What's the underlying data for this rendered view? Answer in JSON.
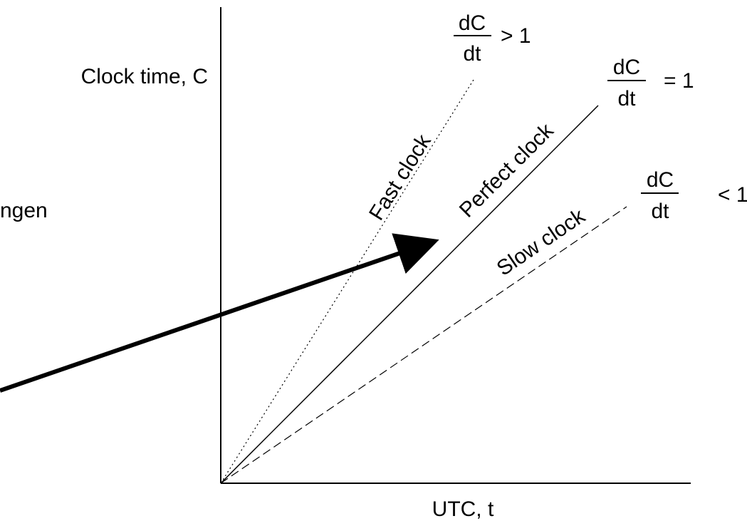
{
  "y_axis_label": "Clock time, C",
  "x_axis_label": "UTC, t",
  "partial_left_text": "ngen",
  "lines": {
    "fast": {
      "label": "Fast clock",
      "numerator": "dC",
      "denominator": "dt",
      "relation": "> 1"
    },
    "perfect": {
      "label": "Perfect clock",
      "numerator": "dC",
      "denominator": "dt",
      "relation": "= 1"
    },
    "slow": {
      "label": "Slow clock",
      "numerator": "dC",
      "denominator": "dt",
      "relation": "< 1"
    }
  }
}
